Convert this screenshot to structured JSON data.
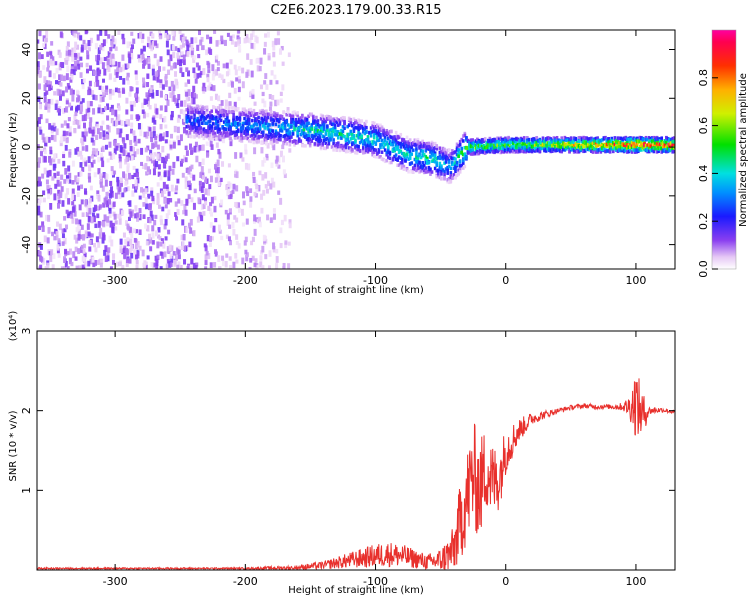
{
  "figure": {
    "title": "C2E6.2023.179.00.33.R15"
  },
  "chart_data": [
    {
      "type": "heatmap",
      "xlabel": "Height of straight line (km)",
      "ylabel": "Frequency (Hz)",
      "xlim": [
        -360,
        130
      ],
      "ylim": [
        -50,
        48
      ],
      "xticks": [
        -300,
        -200,
        -100,
        0,
        100
      ],
      "yticks": [
        -40,
        -20,
        0,
        20,
        40
      ],
      "colorbar": {
        "label": "Normalized spectral amplitude",
        "range": [
          0,
          1
        ],
        "ticks": [
          0.0,
          0.2,
          0.4,
          0.6,
          0.8
        ],
        "colormap": "rainbow (purple-blue-cyan-green-yellow-orange-red-magenta)"
      },
      "ridge": {
        "description": "Dominant frequency ridge (Hz) vs height (km)",
        "x": [
          -245,
          -200,
          -150,
          -120,
          -100,
          -75,
          -55,
          -42,
          -30,
          0,
          50,
          100,
          125
        ],
        "frequency": [
          11,
          9,
          7,
          5,
          3,
          -3,
          -5,
          -8,
          0,
          1,
          1,
          1,
          1
        ],
        "peak_amplitude": [
          0.3,
          0.35,
          0.45,
          0.5,
          0.45,
          0.45,
          0.5,
          0.35,
          0.65,
          0.6,
          0.75,
          0.95,
          0.95
        ]
      },
      "noise_region": {
        "description": "Scattered low-amplitude noise",
        "x_range": [
          -360,
          -165
        ],
        "frequency_range": [
          -50,
          48
        ],
        "amplitude_range": [
          0.0,
          0.15
        ]
      }
    },
    {
      "type": "line",
      "xlabel": "Height of straight line (km)",
      "ylabel": "SNR (10 * v/v)",
      "scale_label": "(x10⁴)",
      "xlim": [
        -360,
        130
      ],
      "ylim": [
        0,
        3
      ],
      "xticks": [
        -300,
        -200,
        -100,
        0,
        100
      ],
      "yticks": [
        1,
        2,
        3
      ],
      "series": [
        {
          "color": "#e8302c",
          "x": [
            -360,
            -300,
            -200,
            -160,
            -140,
            -120,
            -100,
            -90,
            -80,
            -70,
            -60,
            -50,
            -40,
            -35,
            -30,
            -25,
            -20,
            -15,
            -10,
            -5,
            0,
            10,
            20,
            30,
            40,
            50,
            60,
            70,
            80,
            90,
            95,
            100,
            105,
            110,
            120,
            130
          ],
          "y": [
            0.02,
            0.02,
            0.02,
            0.03,
            0.06,
            0.12,
            0.18,
            0.2,
            0.18,
            0.14,
            0.1,
            0.12,
            0.25,
            0.6,
            0.9,
            1.2,
            1.0,
            1.3,
            1.1,
            1.15,
            1.5,
            1.75,
            1.9,
            1.95,
            2.0,
            2.04,
            2.06,
            2.05,
            2.05,
            2.05,
            2.05,
            2.1,
            1.95,
            2.0,
            2.01,
            1.98
          ],
          "noise_amplitude": [
            0.01,
            0.01,
            0.01,
            0.03,
            0.05,
            0.1,
            0.15,
            0.16,
            0.15,
            0.12,
            0.1,
            0.15,
            0.3,
            0.5,
            0.6,
            0.7,
            0.65,
            0.55,
            0.5,
            0.4,
            0.3,
            0.15,
            0.08,
            0.05,
            0.03,
            0.03,
            0.03,
            0.03,
            0.03,
            0.05,
            0.15,
            0.45,
            0.3,
            0.05,
            0.03,
            0.02
          ]
        }
      ]
    }
  ]
}
